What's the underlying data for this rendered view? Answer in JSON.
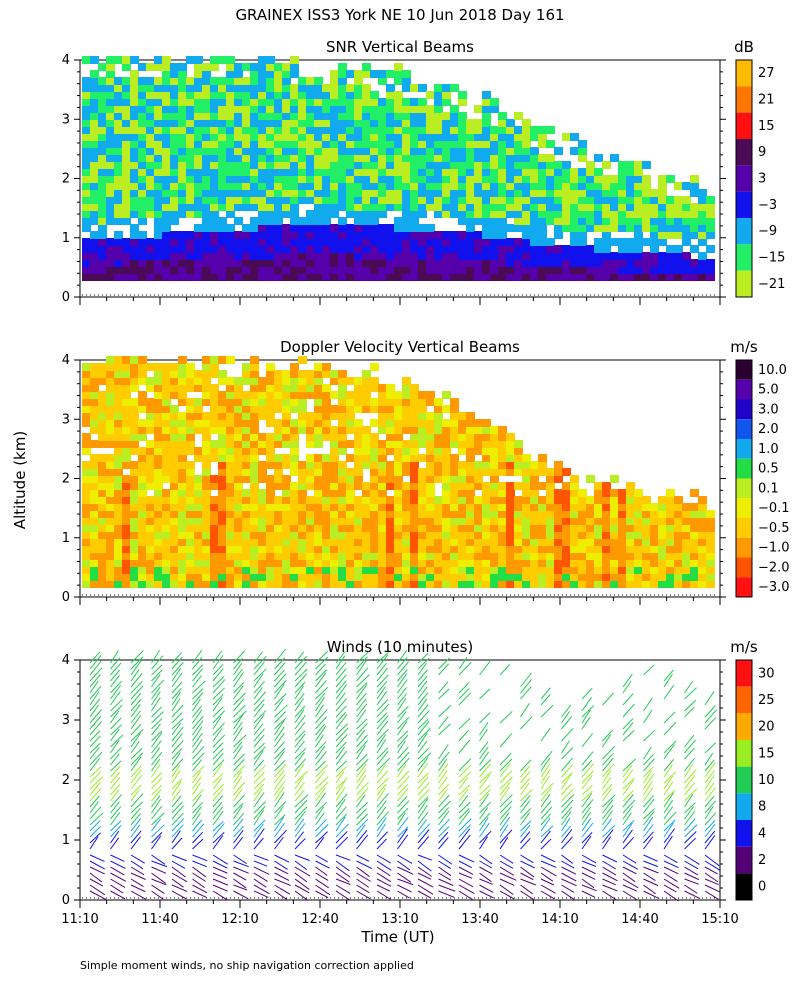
{
  "title": "GRAINEX ISS3 York NE  10 Jun 2018 Day 161",
  "ylabel": "Altitude (km)",
  "xlabel": "Time (UT)",
  "note": "Simple moment winds, no ship navigation correction applied",
  "chart_data": [
    {
      "type": "heatmap",
      "title": "SNR Vertical Beams",
      "units": "dB",
      "ylim": [
        0,
        4
      ],
      "yticks": [
        "0",
        "1",
        "2",
        "3",
        "4"
      ],
      "colorbar": {
        "labels": [
          "27",
          "21",
          "15",
          "9",
          "3",
          "−3",
          "−9",
          "−15",
          "−21"
        ],
        "colors": [
          "#ffbb00",
          "#ff7700",
          "#ff1111",
          "#4a0a55",
          "#5500aa",
          "#1111ee",
          "#11aaee",
          "#22ee66",
          "#bbee22"
        ]
      },
      "fields": {
        "x": [
          "11:10",
          "11:40",
          "12:10",
          "12:40",
          "13:10",
          "13:40",
          "14:10",
          "14:40",
          "15:10"
        ],
        "echo_top_km": [
          4.0,
          4.0,
          4.0,
          3.9,
          3.7,
          3.3,
          2.6,
          2.2,
          1.8
        ],
        "strong_layer_top_km": [
          0.9,
          1.0,
          1.1,
          1.2,
          1.1,
          1.0,
          0.8,
          0.7,
          0.6
        ]
      }
    },
    {
      "type": "heatmap",
      "title": "Doppler Velocity Vertical Beams",
      "units": "m/s",
      "ylim": [
        0,
        4
      ],
      "yticks": [
        "0",
        "1",
        "2",
        "3",
        "4"
      ],
      "colorbar": {
        "labels": [
          "10.0",
          "5.0",
          "3.0",
          "2.0",
          "1.0",
          "0.5",
          "0.1",
          "−0.1",
          "−0.5",
          "−1.0",
          "−2.0",
          "−3.0"
        ],
        "colors": [
          "#2a0030",
          "#5500aa",
          "#2200cc",
          "#1155ee",
          "#11aaee",
          "#22dd44",
          "#bbee22",
          "#eeee00",
          "#ffcc00",
          "#ff9900",
          "#ff5500",
          "#ff1111"
        ]
      },
      "fields": {
        "x": [
          "11:10",
          "11:40",
          "12:10",
          "12:40",
          "13:10",
          "13:40",
          "14:10",
          "14:40",
          "15:10"
        ],
        "echo_top_km": [
          4.0,
          4.0,
          3.9,
          3.9,
          3.6,
          3.0,
          2.0,
          1.7,
          1.5
        ]
      }
    },
    {
      "type": "wind-barbs",
      "title": "Winds (10 minutes)",
      "units": "m/s",
      "ylim": [
        0,
        4
      ],
      "yticks": [
        "0",
        "1",
        "2",
        "3",
        "4"
      ],
      "colorbar": {
        "labels": [
          "30",
          "25",
          "20",
          "15",
          "10",
          "8",
          "4",
          "2",
          "0"
        ],
        "colors": [
          "#ff1111",
          "#ff6600",
          "#ffaa00",
          "#99ee22",
          "#22cc55",
          "#11aaee",
          "#1111ee",
          "#550077",
          "#000000"
        ]
      },
      "x": [
        "11:10",
        "11:40",
        "12:10",
        "12:40",
        "13:10",
        "13:40",
        "14:10",
        "14:40",
        "15:10"
      ],
      "profile_top_km": [
        4.0,
        4.0,
        4.0,
        4.0,
        4.0,
        4.0,
        3.2,
        3.8,
        3.6
      ]
    }
  ]
}
